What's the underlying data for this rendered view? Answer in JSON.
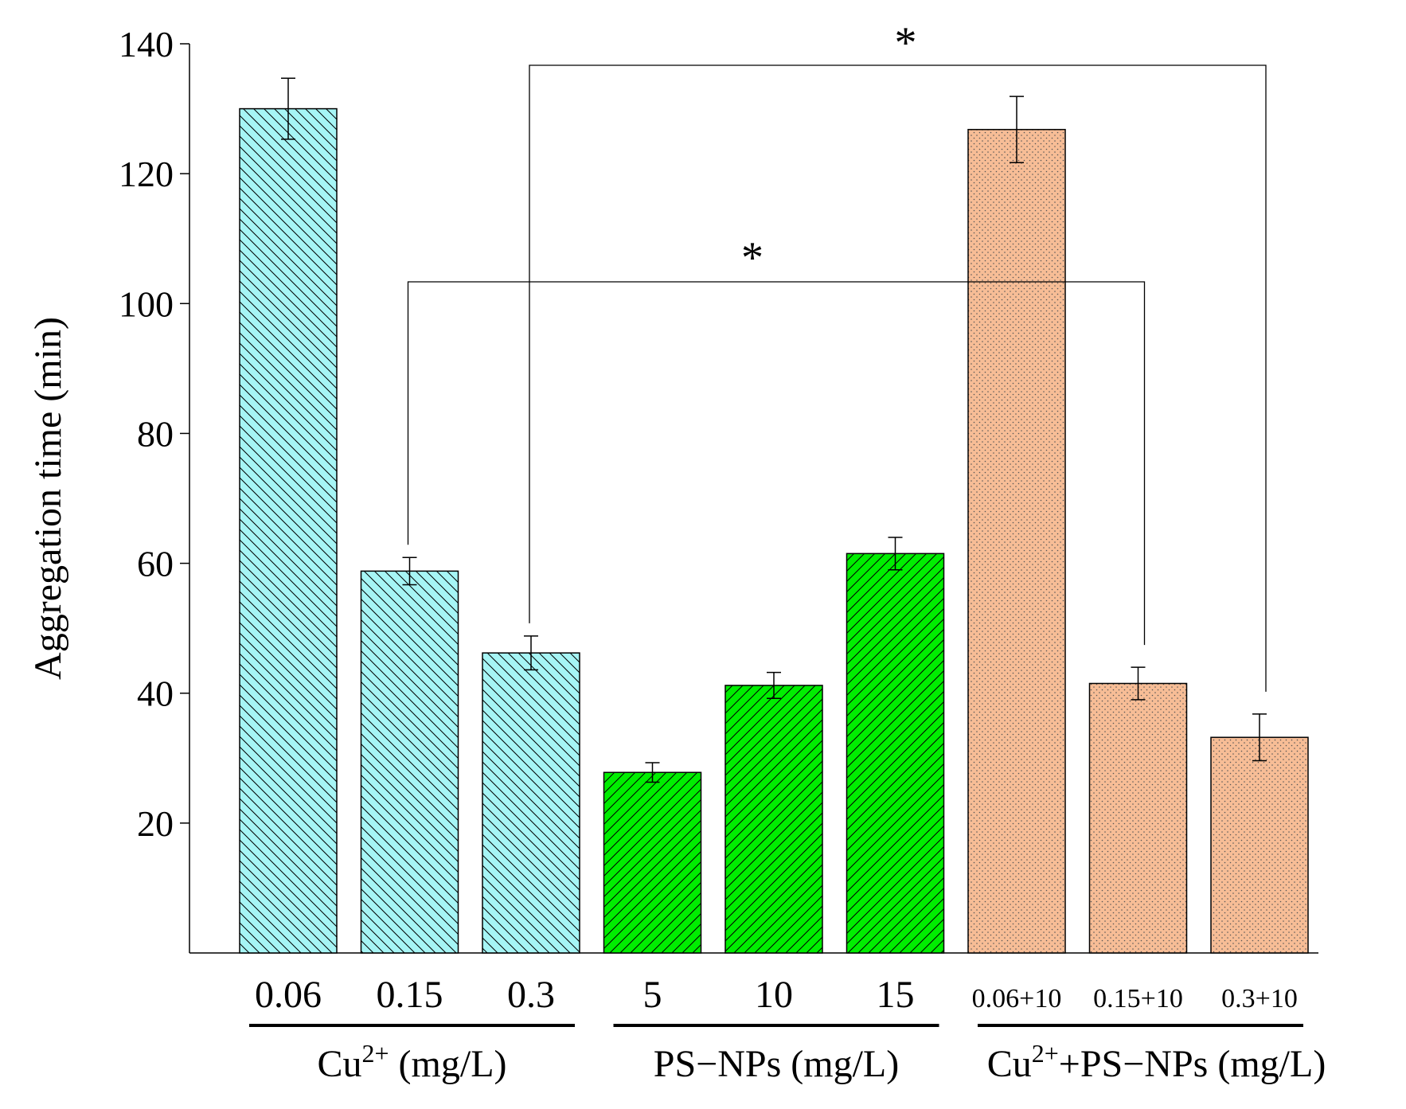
{
  "chart_data": {
    "type": "bar",
    "title": "",
    "xlabel": "",
    "ylabel": "Aggregation time (min)",
    "ylim": [
      0,
      140
    ],
    "yticks": [
      20,
      40,
      60,
      80,
      100,
      120,
      140
    ],
    "categories": [
      "0.06",
      "0.15",
      "0.3",
      "5",
      "10",
      "15",
      "0.06+10",
      "0.15+10",
      "0.3+10"
    ],
    "values": [
      130,
      58.8,
      46.2,
      27.8,
      41.2,
      61.5,
      126.8,
      41.5,
      33.2
    ],
    "errors": [
      4.7,
      2.1,
      2.6,
      1.5,
      2.0,
      2.5,
      5.1,
      2.5,
      3.6
    ],
    "groups": [
      {
        "name": "Cu2+",
        "label": "Cu",
        "superscript": "2+",
        "suffix": " (mg/L)",
        "start": 0,
        "end": 2,
        "color": "#a6f5f5",
        "pattern": "backslash"
      },
      {
        "name": "PS-NPs",
        "label": "PS−NPs (mg/L)",
        "superscript": "",
        "suffix": "",
        "start": 3,
        "end": 5,
        "color": "#00ee00",
        "pattern": "slash"
      },
      {
        "name": "Cu2+ + PS-NPs",
        "label": "Cu",
        "superscript": "2+",
        "suffix": "+PS−NPs (mg/L)",
        "start": 6,
        "end": 8,
        "color": "#f7bd96",
        "pattern": "dots"
      }
    ],
    "significance": [
      {
        "from": 2,
        "to": 8,
        "label": "*"
      },
      {
        "from": 1,
        "to": 7,
        "label": "*"
      }
    ]
  }
}
